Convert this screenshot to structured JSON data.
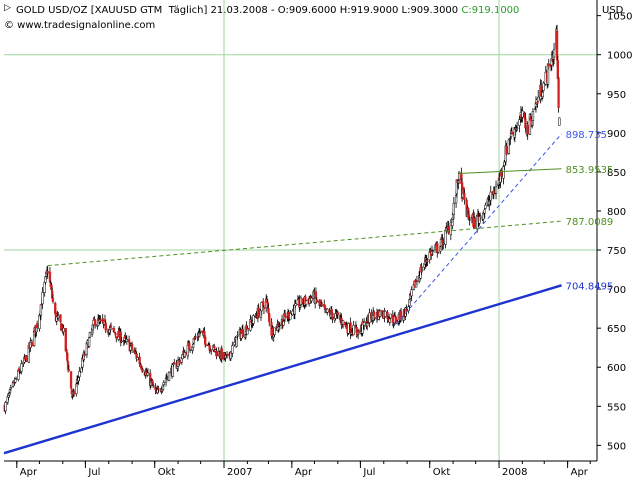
{
  "header": {
    "line1_main": "GOLD USD/OZ [XAUUSD GTM  Täglich] 21.03.2008 - O:909.6000 H:919.9000 L:909.3000 ",
    "line1_close": "C:919.1000",
    "line2": "© www.tradesignalonline.com",
    "unit_label": "USD"
  },
  "colors": {
    "background": "#ffffff",
    "grid": "#9fd59f",
    "axis": "#000000",
    "candle_up": "#ffffff",
    "candle_down": "#d21f1f",
    "support_trendline": "#1f33d1",
    "dashed_trendline_lower": "#3a55e8",
    "resistance_green": "#4f8f1f",
    "label_blue": "#1f33d1",
    "label_lightblue": "#3a55e8",
    "label_green": "#4f8f1f"
  },
  "chart_data": {
    "type": "candlestick",
    "title": "GOLD USD/OZ [XAUUSD GTM  Täglich]",
    "ylabel": "USD",
    "ylim": [
      480,
      1070
    ],
    "y_ticks": [
      500,
      550,
      600,
      650,
      700,
      750,
      800,
      850,
      900,
      950,
      1000,
      1050
    ],
    "x_tick_labels": [
      "Apr",
      "Jul",
      "Okt",
      "2007",
      "Apr",
      "Jul",
      "Okt",
      "2008",
      "Apr"
    ],
    "x_tick_dates": [
      "2006-04-01",
      "2006-07-01",
      "2006-10-01",
      "2007-01-01",
      "2007-04-01",
      "2007-07-01",
      "2007-10-01",
      "2008-01-01",
      "2008-04-01"
    ],
    "x_range": [
      "2006-03-15",
      "2008-05-10"
    ],
    "grid": "horizontal at 750 and 1000, vertical at year starts",
    "price_path": [
      [
        "2006-03-16",
        550
      ],
      [
        "2006-03-31",
        585
      ],
      [
        "2006-04-15",
        615
      ],
      [
        "2006-04-28",
        655
      ],
      [
        "2006-05-12",
        725
      ],
      [
        "2006-05-22",
        665
      ],
      [
        "2006-06-01",
        650
      ],
      [
        "2006-06-14",
        560
      ],
      [
        "2006-06-28",
        610
      ],
      [
        "2006-07-14",
        660
      ],
      [
        "2006-07-31",
        650
      ],
      [
        "2006-08-15",
        640
      ],
      [
        "2006-08-31",
        625
      ],
      [
        "2006-09-15",
        600
      ],
      [
        "2006-10-04",
        565
      ],
      [
        "2006-10-15",
        585
      ],
      [
        "2006-10-31",
        605
      ],
      [
        "2006-11-15",
        625
      ],
      [
        "2006-11-30",
        645
      ],
      [
        "2006-12-15",
        625
      ],
      [
        "2007-01-05",
        610
      ],
      [
        "2007-01-20",
        640
      ],
      [
        "2007-02-05",
        655
      ],
      [
        "2007-02-26",
        685
      ],
      [
        "2007-03-05",
        645
      ],
      [
        "2007-03-20",
        660
      ],
      [
        "2007-04-10",
        680
      ],
      [
        "2007-04-30",
        690
      ],
      [
        "2007-05-15",
        670
      ],
      [
        "2007-05-31",
        665
      ],
      [
        "2007-06-15",
        650
      ],
      [
        "2007-06-29",
        645
      ],
      [
        "2007-07-15",
        665
      ],
      [
        "2007-07-31",
        670
      ],
      [
        "2007-08-16",
        660
      ],
      [
        "2007-08-31",
        672
      ],
      [
        "2007-09-15",
        715
      ],
      [
        "2007-09-30",
        745
      ],
      [
        "2007-10-15",
        755
      ],
      [
        "2007-10-31",
        790
      ],
      [
        "2007-11-08",
        845
      ],
      [
        "2007-11-20",
        795
      ],
      [
        "2007-11-30",
        785
      ],
      [
        "2007-12-15",
        805
      ],
      [
        "2007-12-31",
        835
      ],
      [
        "2008-01-15",
        895
      ],
      [
        "2008-01-31",
        920
      ],
      [
        "2008-02-08",
        905
      ],
      [
        "2008-02-22",
        945
      ],
      [
        "2008-03-05",
        975
      ],
      [
        "2008-03-14",
        1005
      ],
      [
        "2008-03-17",
        1030
      ],
      [
        "2008-03-19",
        960
      ],
      [
        "2008-03-21",
        919.1
      ]
    ],
    "last_candle": {
      "date": "2008-03-21",
      "open": 909.6,
      "high": 919.9,
      "low": 909.3,
      "close": 919.1
    },
    "trendlines": [
      {
        "name": "support",
        "style": "solid",
        "color": "#1f33d1",
        "points": [
          [
            "2006-03-15",
            490
          ],
          [
            "2008-03-24",
            704.8495
          ]
        ],
        "label": "704.8495"
      },
      {
        "name": "dashed-lower",
        "style": "dashed",
        "color": "#3a55e8",
        "points": [
          [
            "2007-08-17",
            655
          ],
          [
            "2008-03-24",
            898.735
          ]
        ],
        "label": "898.735"
      },
      {
        "name": "dashed-upper",
        "style": "dashed",
        "color": "#4f8f1f",
        "points": [
          [
            "2006-05-12",
            730
          ],
          [
            "2008-03-24",
            787.0089
          ]
        ],
        "label": "787.0089"
      },
      {
        "name": "resistance",
        "style": "solid",
        "color": "#4f8f1f",
        "points": [
          [
            "2007-11-08",
            848
          ],
          [
            "2008-03-24",
            853.9535
          ]
        ],
        "label": "853.9535"
      }
    ]
  }
}
